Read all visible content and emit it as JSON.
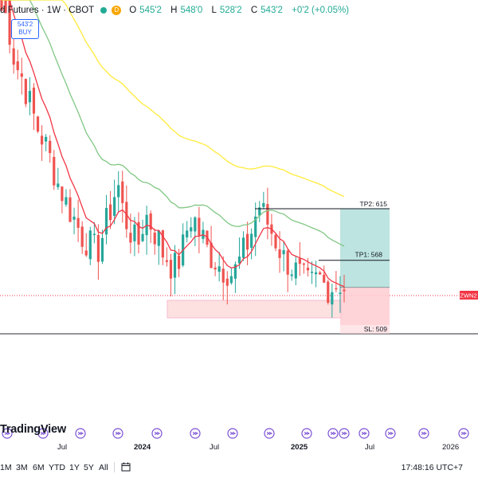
{
  "header": {
    "symbol": "d Futures · 1W · CBOT",
    "badge_d": "D",
    "open_label": "O",
    "open_value": "545'2",
    "high_label": "H",
    "high_value": "548'0",
    "low_label": "L",
    "low_value": "528'2",
    "close_label": "C",
    "close_value": "543'2",
    "change": "+0'2 (+0.05%)",
    "buy_price": "543'2",
    "buy_label": "BUY"
  },
  "colors": {
    "up": "#26a69a",
    "down": "#ef5350",
    "ema_red": "#f23645",
    "ema_green": "#81c784",
    "ema_yellow": "#ffeb3b",
    "target_zone": "#b2dfdb",
    "stop_zone": "#ffcdd2",
    "support_zone": "#fde0e0"
  },
  "chart_data": {
    "type": "candlestick",
    "title": "",
    "xlabel": "",
    "ylabel": "",
    "x_ticks": [
      "Jul",
      "2024",
      "Jul",
      "2025",
      "Jul",
      "2026"
    ],
    "x_ticks_bold": [
      "2024",
      "2025"
    ],
    "ylim": [
      495,
      660
    ],
    "trade_levels": {
      "tp2_label": "TP2: 615",
      "tp2": 615,
      "tp1_label": "TP1: 568",
      "tp1": 568,
      "sl_label": "SL: 509",
      "sl": 509,
      "entry": 543.25
    },
    "price_tag": "ZWN2",
    "series": [
      {
        "role": "candles",
        "values": []
      },
      {
        "role": "ema_fast",
        "color": "#f23645"
      },
      {
        "role": "ema_mid",
        "color": "#81c784"
      },
      {
        "role": "ema_slow",
        "color": "#ffeb3b"
      }
    ],
    "approx_close_path": [
      820,
      800,
      760,
      745,
      735,
      720,
      705,
      690,
      680,
      670,
      655,
      640,
      630,
      618,
      610,
      600,
      590,
      585,
      580,
      575,
      590,
      605,
      620,
      640,
      615,
      600,
      590,
      580,
      600,
      610,
      595,
      590,
      575,
      570,
      560,
      565,
      580,
      600,
      610,
      595,
      588,
      575,
      570,
      565,
      560,
      558,
      555,
      565,
      575,
      585,
      600,
      620,
      610,
      600,
      590,
      580,
      570,
      565,
      560,
      555,
      550,
      545,
      548,
      552,
      546,
      543,
      545,
      548,
      543
    ]
  },
  "watermark": "TradingView",
  "bottom": {
    "timeframes": [
      "1M",
      "3M",
      "6M",
      "YTD",
      "1Y",
      "5Y",
      "All"
    ],
    "clock": "17:48:16 UTC+7"
  }
}
